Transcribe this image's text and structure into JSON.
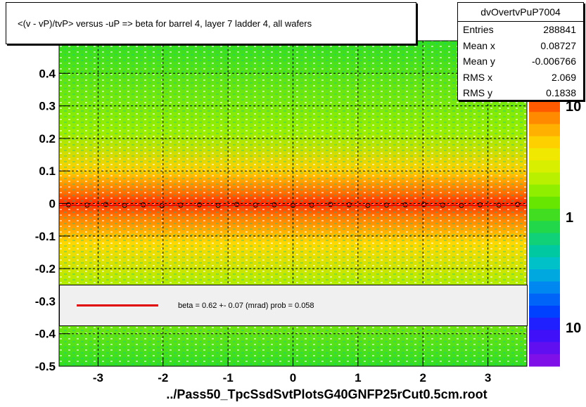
{
  "window": {
    "footer_file": "../Pass50_TpcSsdSvtPlotsG40GNFP25rCut0.5cm.root"
  },
  "chart_data": {
    "type": "heatmap",
    "title": "<(v - vP)/tvP> versus  -uP => beta for barrel 4, layer 7 ladder 4, all wafers",
    "xlabel": "",
    "ylabel": "",
    "xlim": [
      -3.6,
      3.6
    ],
    "ylim": [
      -0.5,
      0.5
    ],
    "x_ticks": [
      -3,
      -2,
      -1,
      0,
      1,
      2,
      3
    ],
    "y_ticks": [
      -0.5,
      -0.4,
      -0.3,
      -0.2,
      -0.1,
      0,
      0.1,
      0.2,
      0.3,
      0.4
    ],
    "grid": true,
    "colorbar_labels": [
      "10",
      "1",
      "10"
    ],
    "profile_mean": [
      -0.004,
      -0.005,
      -0.003,
      -0.006,
      -0.004,
      -0.007,
      -0.005,
      -0.004,
      -0.006,
      -0.003,
      -0.005,
      -0.004,
      -0.006,
      -0.005,
      -0.003,
      -0.004,
      -0.006,
      -0.005,
      -0.004,
      -0.003,
      -0.005,
      -0.006,
      -0.004,
      -0.005,
      -0.003
    ],
    "fit": {
      "type": "line",
      "color": "#e00000",
      "y_value": -0.006
    },
    "stats": {
      "name": "dvOvertvPuP7004",
      "rows": [
        {
          "label": "Entries",
          "value": "288841"
        },
        {
          "label": "Mean x",
          "value": "0.08727"
        },
        {
          "label": "Mean y",
          "value": "-0.006766"
        },
        {
          "label": "RMS x",
          "value": "2.069"
        },
        {
          "label": "RMS y",
          "value": "0.1838"
        }
      ]
    },
    "legend": {
      "entry": "beta =    0.62 +-  0.07 (mrad) prob = 0.058",
      "line_color": "#e00000"
    }
  }
}
